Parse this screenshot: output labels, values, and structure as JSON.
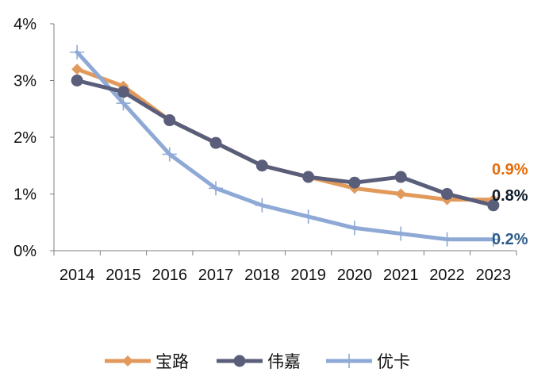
{
  "chart_data": {
    "type": "line",
    "title": "",
    "xlabel": "",
    "ylabel": "",
    "ylim": [
      0,
      4
    ],
    "yticks": [
      "0%",
      "1%",
      "2%",
      "3%",
      "4%"
    ],
    "ytick_values": [
      0,
      1,
      2,
      3,
      4
    ],
    "categories": [
      "2014",
      "2015",
      "2016",
      "2017",
      "2018",
      "2019",
      "2020",
      "2021",
      "2022",
      "2023"
    ],
    "grid": false,
    "legend_position": "bottom",
    "series": [
      {
        "name": "宝路",
        "color": "#E29A5C",
        "marker": "diamond",
        "values": [
          3.2,
          2.9,
          2.3,
          1.9,
          1.5,
          1.3,
          1.1,
          1.0,
          0.9,
          0.9
        ],
        "end_label": "0.9%",
        "end_label_color": "#E46C0A"
      },
      {
        "name": "伟嘉",
        "color": "#5A5E7A",
        "marker": "circle",
        "values": [
          3.0,
          2.8,
          2.3,
          1.9,
          1.5,
          1.3,
          1.2,
          1.3,
          1.0,
          0.8
        ],
        "end_label": "0.8%",
        "end_label_color": "#0D1B2A"
      },
      {
        "name": "优卡",
        "color": "#8EA9D5",
        "marker": "plus",
        "values": [
          3.5,
          2.6,
          1.7,
          1.1,
          0.8,
          0.6,
          0.4,
          0.3,
          0.2,
          0.2
        ],
        "end_label": "0.2%",
        "end_label_color": "#2E5C8A"
      }
    ]
  }
}
